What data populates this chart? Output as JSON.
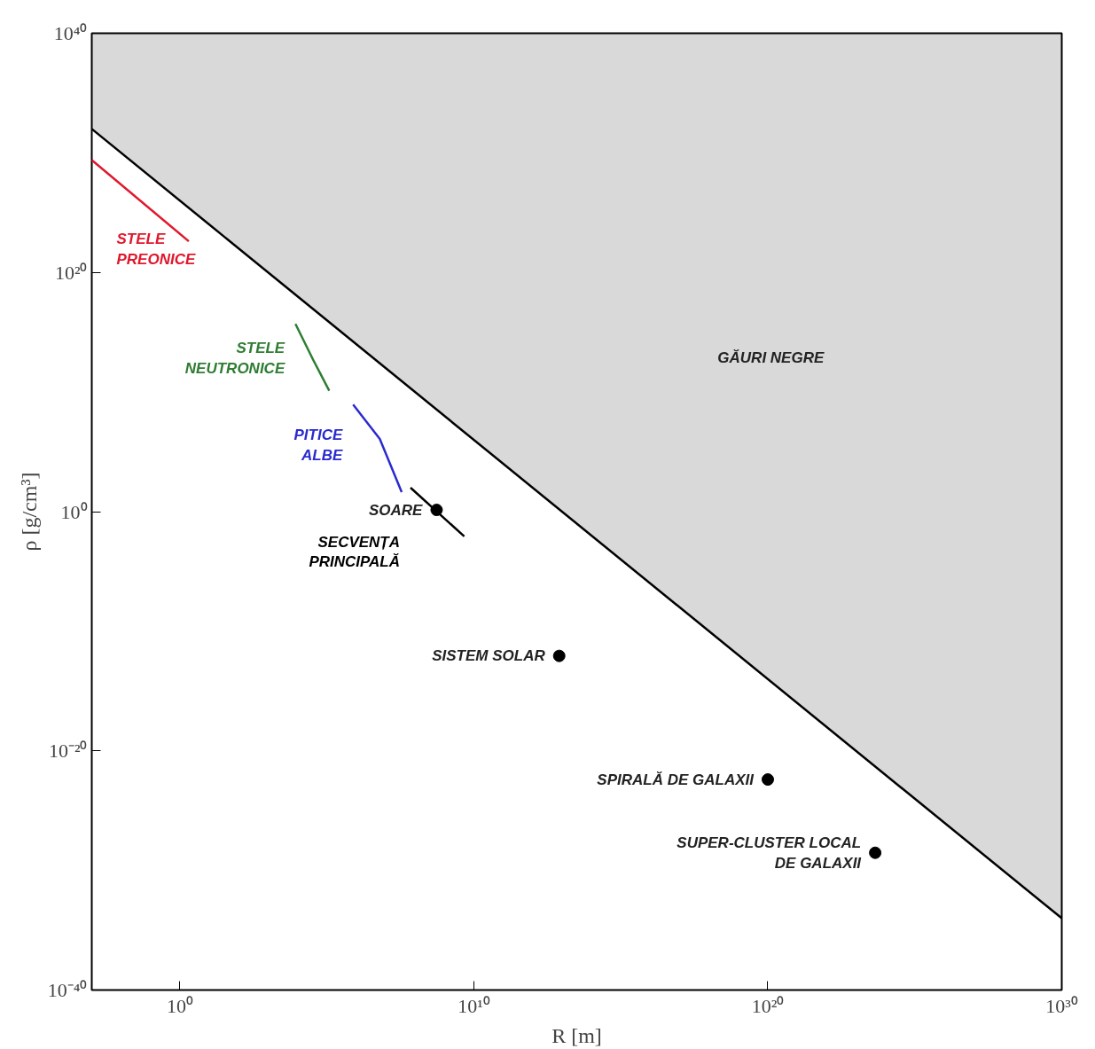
{
  "chart_data": {
    "type": "line",
    "xlabel": "R [m]",
    "ylabel": "ρ [g/cm³]",
    "log": "xy",
    "xlim": [
      0.001,
      1e+30
    ],
    "ylim": [
      1e-40,
      1e+40
    ],
    "xticks": [
      {
        "value": 1,
        "label": "10⁰"
      },
      {
        "value": 10000000000.0,
        "label": "10¹⁰"
      },
      {
        "value": 1e+20,
        "label": "10²⁰"
      },
      {
        "value": 1e+30,
        "label": "10³⁰"
      }
    ],
    "yticks": [
      {
        "value": 1e-40,
        "label": "10⁻⁴⁰"
      },
      {
        "value": 1e-20,
        "label": "10⁻²⁰"
      },
      {
        "value": 1,
        "label": "10⁰"
      },
      {
        "value": 1e+20,
        "label": "10²⁰"
      },
      {
        "value": 1e+40,
        "label": "10⁴⁰"
      }
    ],
    "grid": false,
    "line_style": "solid",
    "series": [
      {
        "color": "#000000",
        "x": [
          0.001,
          1e+30
        ],
        "values": [
          1e+32,
          1e-34
        ],
        "lower": [
          1e+32,
          1e-34
        ],
        "upper": [
          1e+40,
          1e+40
        ]
      },
      {
        "name": "STELE PREONICE",
        "color": "#e0182d",
        "x": [
          0.001,
          2
        ],
        "values": [
          2.5e+29,
          4e+22
        ]
      },
      {
        "name": "STELE NEUTRONICE",
        "color": "#2e7d32",
        "x": [
          8500,
          34000,
          120000
        ],
        "values": [
          5000000000000000.0,
          5000000000000.0,
          13000000000.0
        ]
      },
      {
        "name": "PITICE ALBE",
        "color": "#2a2ad0",
        "x": [
          780000,
          6300000,
          35000000
        ],
        "values": [
          900000000.0,
          1200000.0,
          43
        ]
      },
      {
        "name": "SECVENȚA PRINCIPALĂ",
        "color": "#000000",
        "x": [
          70000000,
          4700000000
        ],
        "values": [
          100,
          0.0085
        ]
      },
      {
        "type": "scatter",
        "marker": "circle",
        "color": "#000000",
        "x": [
          540000000,
          8000000000000.0,
          1e+20,
          4.5e+23
        ],
        "values": [
          1.4,
          8.7e-13,
          4e-23,
          3e-29
        ],
        "value_labels": [
          "SOARE",
          "SISTEM SOLAR",
          "SPIRALĂ DE GALAXII",
          "SUPER-CLUSTER LOCAL\nDE GALAXII"
        ]
      }
    ],
    "annotations": [
      "GĂURI NEGRE"
    ]
  }
}
